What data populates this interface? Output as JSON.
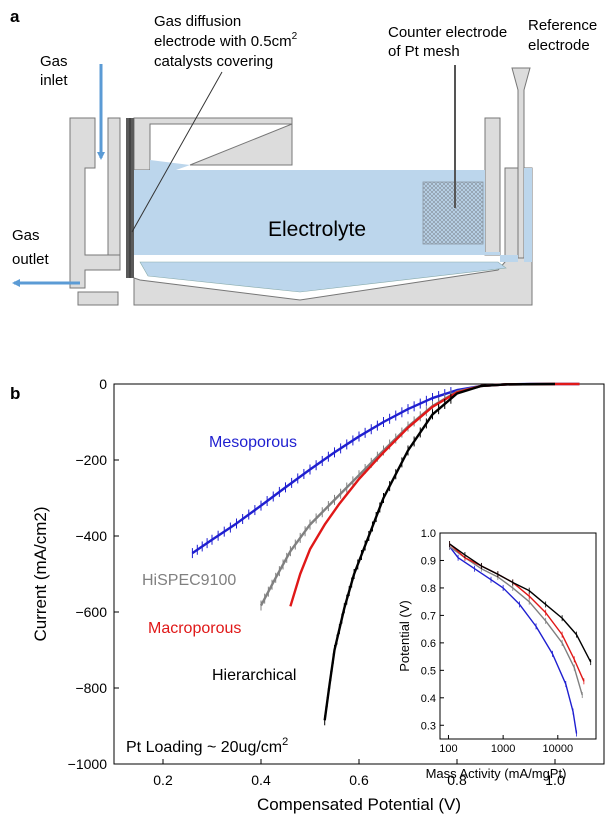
{
  "panel_a": {
    "label": "a",
    "gas_inlet": [
      "Gas",
      "inlet"
    ],
    "gas_outlet": [
      "Gas",
      "outlet"
    ],
    "gde": [
      "Gas diffusion",
      "electrode with 0.5cm",
      "2",
      "catalysts covering"
    ],
    "counter": [
      "Counter electrode",
      "of Pt mesh"
    ],
    "reference": [
      "Reference",
      "electrode"
    ],
    "electrolyte": "Electrolyte",
    "colors": {
      "electrolyte": "#bcd6ec",
      "cell": "#dcdcdc",
      "arrow": "#5b9bd5",
      "mesh": "#9aa5b0"
    }
  },
  "panel_b": {
    "label": "b"
  },
  "chart_data": [
    {
      "type": "line",
      "xlabel": "Compensated Potential (V)",
      "ylabel": "Current (mA/cm2)",
      "xlim": [
        0.1,
        1.1
      ],
      "ylim": [
        -1000,
        0
      ],
      "xticks": [
        "0.2",
        "0.4",
        "0.6",
        "0.8",
        "1.0"
      ],
      "yticks": [
        "0",
        "−200",
        "−400",
        "−600",
        "−800",
        "−1000"
      ],
      "annotation": [
        "Pt Loading ~ 20ug/cm",
        "2"
      ],
      "grid": false,
      "series": [
        {
          "name": "Mesoporous",
          "color": "#1f1fd0",
          "errorbars": true,
          "x": [
            0.26,
            0.3,
            0.35,
            0.4,
            0.45,
            0.5,
            0.55,
            0.6,
            0.65,
            0.7,
            0.75,
            0.8,
            0.85,
            0.9,
            0.95,
            1.0,
            1.05
          ],
          "y": [
            -445,
            -410,
            -367,
            -320,
            -272,
            -225,
            -180,
            -138,
            -100,
            -66,
            -37,
            -16,
            -5,
            -1,
            0,
            0,
            0
          ]
        },
        {
          "name": "HiSPEC9100",
          "color": "#808080",
          "errorbars": true,
          "x": [
            0.4,
            0.43,
            0.46,
            0.5,
            0.55,
            0.6,
            0.65,
            0.7,
            0.75,
            0.8,
            0.85,
            0.9,
            1.0
          ],
          "y": [
            -583,
            -510,
            -440,
            -370,
            -305,
            -240,
            -175,
            -112,
            -58,
            -20,
            -5,
            -1,
            0
          ]
        },
        {
          "name": "Macroporous",
          "color": "#e01818",
          "errorbars": false,
          "x": [
            0.46,
            0.48,
            0.5,
            0.53,
            0.56,
            0.6,
            0.65,
            0.7,
            0.75,
            0.8,
            0.85,
            0.9,
            1.0,
            1.05
          ],
          "y": [
            -585,
            -500,
            -435,
            -370,
            -315,
            -250,
            -180,
            -115,
            -60,
            -22,
            -5,
            -1,
            0,
            0
          ]
        },
        {
          "name": "Hierarchical",
          "color": "#000000",
          "errorbars": true,
          "x": [
            0.53,
            0.54,
            0.55,
            0.57,
            0.59,
            0.62,
            0.65,
            0.7,
            0.75,
            0.8,
            0.85,
            0.9,
            1.0
          ],
          "y": [
            -885,
            -790,
            -700,
            -590,
            -500,
            -400,
            -300,
            -175,
            -80,
            -25,
            -5,
            -1,
            0
          ]
        }
      ]
    },
    {
      "type": "line",
      "inset": true,
      "xlabel": "Mass Activity (mA/mgPt)",
      "ylabel": "Potential (V)",
      "xscale": "log",
      "xlim": [
        70,
        50000
      ],
      "ylim": [
        0.25,
        1.0
      ],
      "xticks": [
        "100",
        "1000",
        "10000"
      ],
      "yticks": [
        "0.3",
        "0.4",
        "0.5",
        "0.6",
        "0.7",
        "0.8",
        "0.9",
        "1.0"
      ],
      "series": [
        {
          "color": "#1f1fd0",
          "x": [
            105,
            150,
            300,
            600,
            1000,
            2000,
            4000,
            8000,
            14000,
            19000,
            22000
          ],
          "y": [
            0.95,
            0.91,
            0.87,
            0.83,
            0.8,
            0.74,
            0.66,
            0.56,
            0.45,
            0.35,
            0.27
          ]
        },
        {
          "color": "#808080",
          "x": [
            105,
            200,
            400,
            800,
            1500,
            3000,
            6000,
            12000,
            20000,
            28000
          ],
          "y": [
            0.95,
            0.91,
            0.87,
            0.84,
            0.8,
            0.75,
            0.68,
            0.6,
            0.51,
            0.41
          ]
        },
        {
          "color": "#e01818",
          "x": [
            105,
            200,
            400,
            800,
            1500,
            3000,
            6000,
            12000,
            20000,
            30000
          ],
          "y": [
            0.96,
            0.91,
            0.88,
            0.85,
            0.82,
            0.77,
            0.71,
            0.63,
            0.54,
            0.46
          ]
        },
        {
          "color": "#000000",
          "x": [
            105,
            200,
            400,
            800,
            1500,
            3000,
            6000,
            12000,
            22000,
            40000
          ],
          "y": [
            0.96,
            0.92,
            0.88,
            0.85,
            0.82,
            0.79,
            0.74,
            0.69,
            0.63,
            0.53
          ]
        }
      ]
    }
  ]
}
